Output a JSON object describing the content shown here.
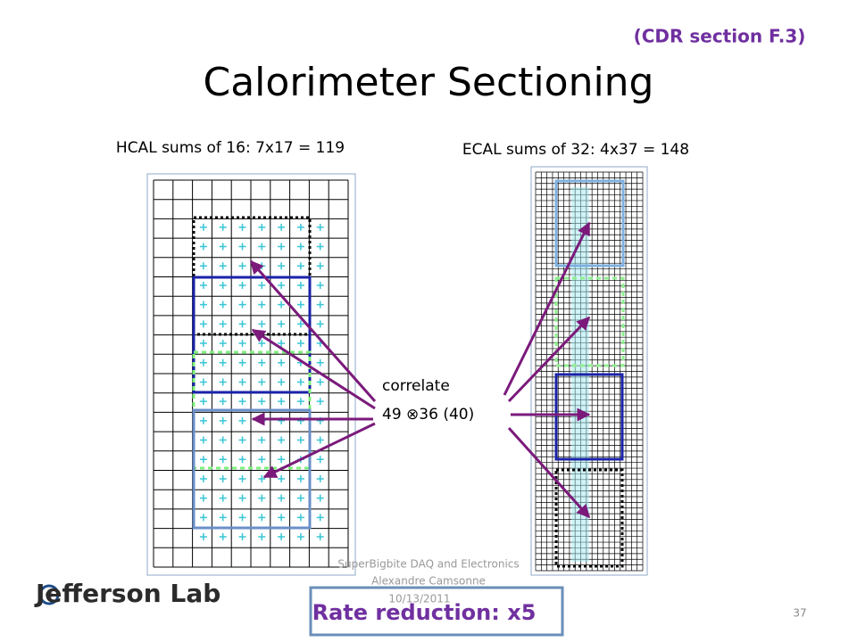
{
  "header": {
    "title": "Calorimeter Sectioning",
    "reference": "(CDR section F.3)"
  },
  "hcal": {
    "label": "HCAL sums of 16:  7x17 = 119"
  },
  "ecal": {
    "label": "ECAL sums of 32:  4x37 = 148"
  },
  "correlation": {
    "line1": "correlate",
    "line2": "49 ⊗36 (40)"
  },
  "footer": {
    "line1": "SuperBigbite DAQ and Electronics",
    "line2": "Alexandre Camsonne",
    "line3": "10/13/2011",
    "logo": "Jefferson Lab",
    "page": "37"
  },
  "callout": {
    "text": "Rate reduction: x5"
  }
}
